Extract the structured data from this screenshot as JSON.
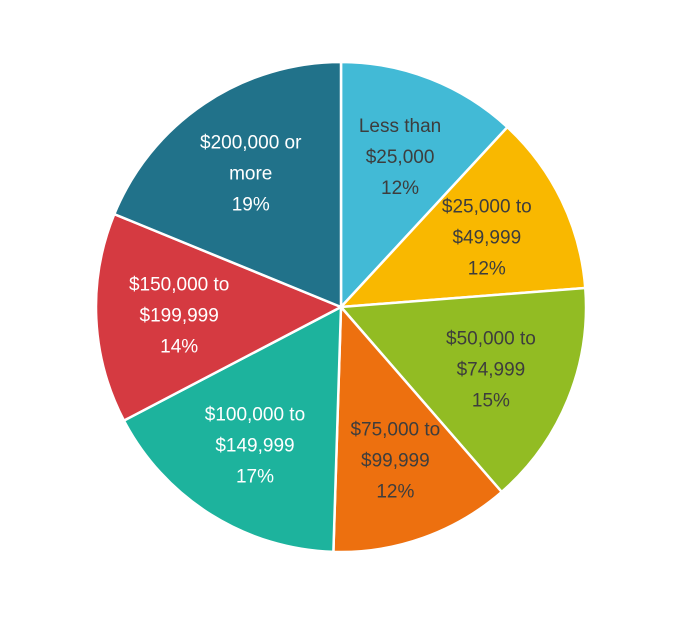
{
  "chart_data": {
    "type": "pie",
    "title": "",
    "categories": [
      "Less than $25,000",
      "$25,000 to $49,999",
      "$50,000 to $74,999",
      "$75,000 to $99,999",
      "$100,000 to $149,999",
      "$150,000 to $199,999",
      "$200,000 or more"
    ],
    "values": [
      12,
      12,
      15,
      12,
      17,
      14,
      19
    ],
    "labels": [
      {
        "lines": [
          "Less than",
          "$25,000",
          "12%"
        ],
        "color": "#3d3d3d"
      },
      {
        "lines": [
          "$25,000 to",
          "$49,999",
          "12%"
        ],
        "color": "#3d3d3d"
      },
      {
        "lines": [
          "$50,000 to",
          "$74,999",
          "15%"
        ],
        "color": "#3d3d3d"
      },
      {
        "lines": [
          "$75,000 to",
          "$99,999",
          "12%"
        ],
        "color": "#3d3d3d"
      },
      {
        "lines": [
          "$100,000 to",
          "$149,999",
          "17%"
        ],
        "color": "#ffffff"
      },
      {
        "lines": [
          "$150,000 to",
          "$199,999",
          "14%"
        ],
        "color": "#ffffff"
      },
      {
        "lines": [
          "$200,000 or",
          "more",
          "19%"
        ],
        "color": "#ffffff"
      }
    ],
    "colors": [
      "#42BAD6",
      "#F9B800",
      "#92BC23",
      "#ED700F",
      "#1DB39D",
      "#D53A41",
      "#21728A"
    ],
    "legend": "none",
    "start_angle_deg": 0,
    "direction": "clockwise"
  }
}
